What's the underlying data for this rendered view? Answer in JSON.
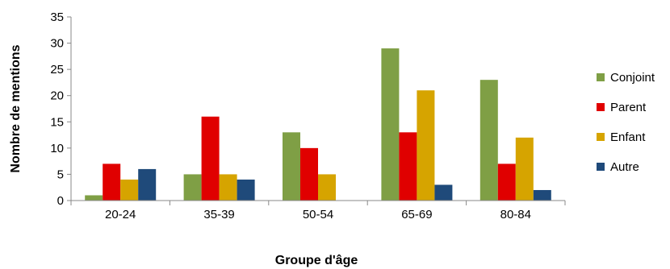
{
  "chart_data": {
    "type": "bar",
    "xlabel": "Groupe d'âge",
    "ylabel": "Nombre de mentions",
    "categories": [
      "20-24",
      "35-39",
      "50-54",
      "65-69",
      "80-84"
    ],
    "ylim": [
      0,
      35
    ],
    "yticks": [
      0,
      5,
      10,
      15,
      20,
      25,
      30,
      35
    ],
    "grid": false,
    "legend_position": "right",
    "series": [
      {
        "name": "Conjoint",
        "color": "#7f9f45",
        "values": [
          1,
          5,
          13,
          29,
          23
        ]
      },
      {
        "name": "Parent",
        "color": "#e00000",
        "values": [
          7,
          16,
          10,
          13,
          7
        ]
      },
      {
        "name": "Enfant",
        "color": "#d6a400",
        "values": [
          4,
          5,
          5,
          21,
          12
        ]
      },
      {
        "name": "Autre",
        "color": "#1f4a7a",
        "values": [
          6,
          4,
          0,
          3,
          2
        ]
      }
    ]
  }
}
